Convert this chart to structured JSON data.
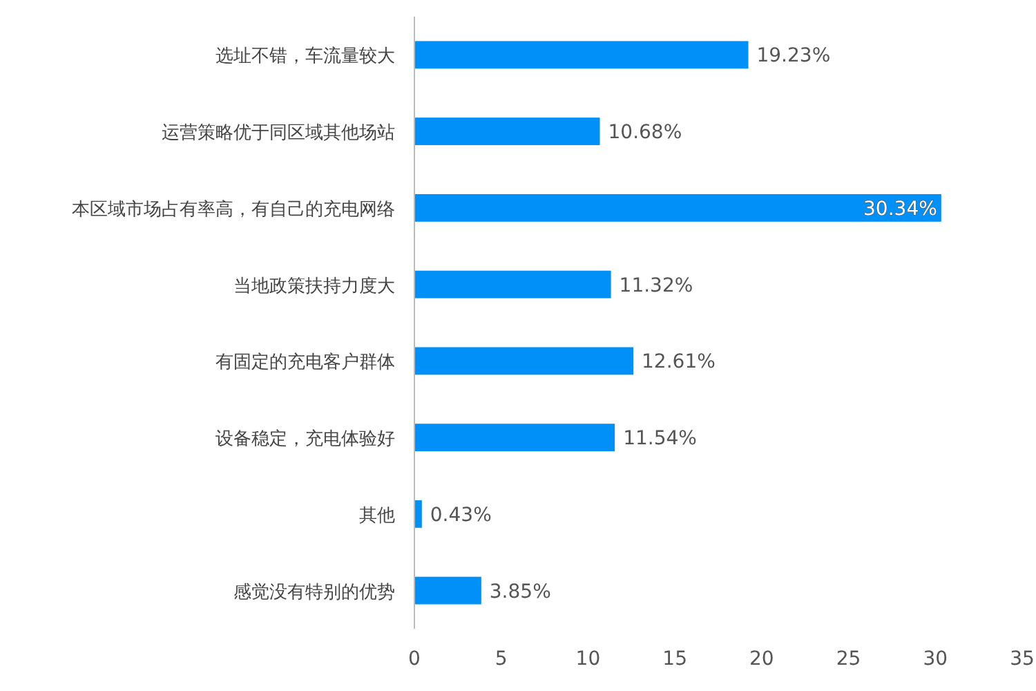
{
  "chart_data": {
    "type": "bar",
    "orientation": "horizontal",
    "categories": [
      "选址不错，车流量较大",
      "运营策略优于同区域其他场站",
      "本区域市场占有率高，有自己的充电网络",
      "当地政策扶持力度大",
      "有固定的充电客户群体",
      "设备稳定，充电体验好",
      "其他",
      "感觉没有特别的优势"
    ],
    "values": [
      19.23,
      10.68,
      30.34,
      11.32,
      12.61,
      11.54,
      0.43,
      3.85
    ],
    "value_labels": [
      "19.23%",
      "10.68%",
      "30.34%",
      "11.32%",
      "12.61%",
      "11.54%",
      "0.43%",
      "3.85%"
    ],
    "color": "#0090f8",
    "xlim": [
      0,
      35
    ],
    "xticks": [
      0,
      5,
      10,
      15,
      20,
      25,
      30,
      35
    ],
    "grid": false
  }
}
